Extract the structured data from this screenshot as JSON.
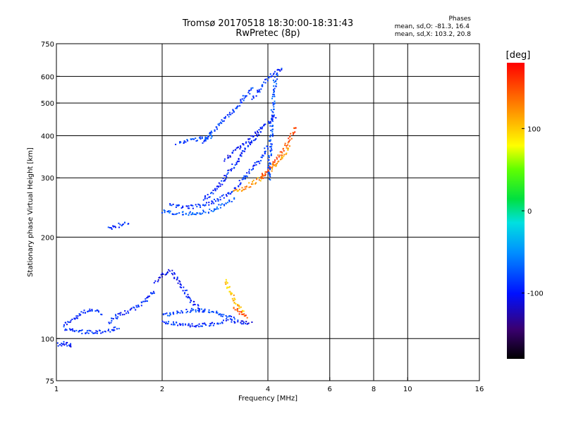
{
  "header": {
    "title_line1": "Tromsø 20170518 18:30:00-18:31:43",
    "title_line2": "RwPretec (8p)",
    "phases_label": "Phases",
    "phases_O": "mean, sd,O: -81.3, 16.4",
    "phases_X": "mean, sd,X: 103.2, 20.8"
  },
  "colorbar": {
    "unit_label": "[deg]",
    "ticks": [
      100,
      0,
      -100
    ],
    "range": [
      -180,
      180
    ]
  },
  "chart_data": {
    "type": "scatter",
    "xlabel": "Frequency [MHz]",
    "ylabel": "Stationary phase Virtual Height [km]",
    "xscale": "log",
    "yscale": "log",
    "xlim": [
      1,
      16
    ],
    "ylim": [
      75,
      750
    ],
    "xticks": [
      1,
      2,
      4,
      6,
      8,
      10,
      16
    ],
    "yticks": [
      75,
      100,
      200,
      300,
      400,
      500,
      600,
      750
    ],
    "grid": true,
    "colormap": "rainbow-phase",
    "traces": [
      {
        "x": [
          1.0,
          1.03,
          1.05,
          1.08,
          1.1
        ],
        "y": [
          97,
          96,
          98,
          95,
          97
        ],
        "phase": -105
      },
      {
        "x": [
          1.05,
          1.1,
          1.15,
          1.2,
          1.25,
          1.3,
          1.35
        ],
        "y": [
          110,
          114,
          118,
          121,
          122,
          121,
          118
        ],
        "phase": -100
      },
      {
        "x": [
          1.05,
          1.1,
          1.2,
          1.3,
          1.4,
          1.5
        ],
        "y": [
          108,
          106,
          105,
          105,
          106,
          108
        ],
        "phase": -95
      },
      {
        "x": [
          1.4,
          1.5,
          1.6,
          1.7,
          1.8,
          1.9
        ],
        "y": [
          112,
          118,
          121,
          125,
          132,
          140
        ],
        "phase": -100
      },
      {
        "x": [
          1.9,
          2.0,
          2.1,
          2.2,
          2.3,
          2.4,
          2.6
        ],
        "y": [
          148,
          155,
          160,
          150,
          140,
          130,
          120
        ],
        "phase": -110
      },
      {
        "x": [
          2.0,
          2.2,
          2.4,
          2.6,
          2.8,
          3.0
        ],
        "y": [
          112,
          111,
          110,
          110,
          111,
          112
        ],
        "phase": -95
      },
      {
        "x": [
          2.0,
          2.2,
          2.4,
          2.6,
          2.8,
          3.0,
          3.2
        ],
        "y": [
          118,
          120,
          122,
          122,
          120,
          118,
          115
        ],
        "phase": -85
      },
      {
        "x": [
          3.0,
          3.1,
          3.2,
          3.3,
          3.4
        ],
        "y": [
          150,
          140,
          130,
          125,
          120
        ],
        "phase": 105
      },
      {
        "x": [
          3.2,
          3.3,
          3.4,
          3.5
        ],
        "y": [
          125,
          120,
          118,
          116
        ],
        "phase": 150
      },
      {
        "x": [
          3.0,
          3.2,
          3.4,
          3.6
        ],
        "y": [
          114,
          113,
          112,
          112
        ],
        "phase": -105
      },
      {
        "x": [
          1.4,
          1.45,
          1.5,
          1.55,
          1.6
        ],
        "y": [
          212,
          215,
          218,
          220,
          222
        ],
        "phase": -100
      },
      {
        "x": [
          2.0,
          2.1,
          2.2,
          2.3,
          2.4,
          2.5,
          2.6,
          2.7,
          2.8,
          2.9,
          3.0,
          3.2
        ],
        "y": [
          240,
          238,
          237,
          236,
          236,
          237,
          238,
          240,
          243,
          247,
          252,
          262
        ],
        "phase": -75
      },
      {
        "x": [
          2.1,
          2.2,
          2.4,
          2.6,
          2.8,
          3.0,
          3.2,
          3.4,
          3.6,
          3.8,
          4.0
        ],
        "y": [
          250,
          248,
          247,
          250,
          257,
          265,
          280,
          300,
          320,
          345,
          375
        ],
        "phase": -95
      },
      {
        "x": [
          2.6,
          2.8,
          3.0,
          3.2,
          3.4,
          3.6,
          3.8
        ],
        "y": [
          260,
          275,
          300,
          330,
          360,
          390,
          410
        ],
        "phase": -100
      },
      {
        "x": [
          3.2,
          3.4,
          3.6,
          3.8,
          4.0,
          4.2,
          4.4,
          4.6
        ],
        "y": [
          275,
          280,
          290,
          300,
          315,
          330,
          350,
          375
        ],
        "phase": 120
      },
      {
        "x": [
          3.8,
          4.0,
          4.2,
          4.4,
          4.6,
          4.8
        ],
        "y": [
          300,
          320,
          340,
          365,
          395,
          430
        ],
        "phase": 145
      },
      {
        "x": [
          4.0,
          4.05,
          4.1,
          4.15,
          4.2
        ],
        "y": [
          300,
          380,
          460,
          540,
          620
        ],
        "phase": -80
      },
      {
        "x": [
          3.6,
          3.8,
          4.0,
          4.2,
          4.4
        ],
        "y": [
          520,
          560,
          600,
          620,
          640
        ],
        "phase": -95
      },
      {
        "x": [
          2.6,
          2.8,
          3.0,
          3.2,
          3.4,
          3.6
        ],
        "y": [
          380,
          420,
          450,
          480,
          520,
          560
        ],
        "phase": -90
      },
      {
        "x": [
          2.2,
          2.3,
          2.4,
          2.6,
          2.8
        ],
        "y": [
          380,
          385,
          390,
          395,
          400
        ],
        "phase": -85
      },
      {
        "x": [
          3.0,
          3.2,
          3.4,
          3.6,
          3.8,
          4.0,
          4.2
        ],
        "y": [
          340,
          360,
          380,
          400,
          420,
          440,
          460
        ],
        "phase": -110
      }
    ]
  }
}
